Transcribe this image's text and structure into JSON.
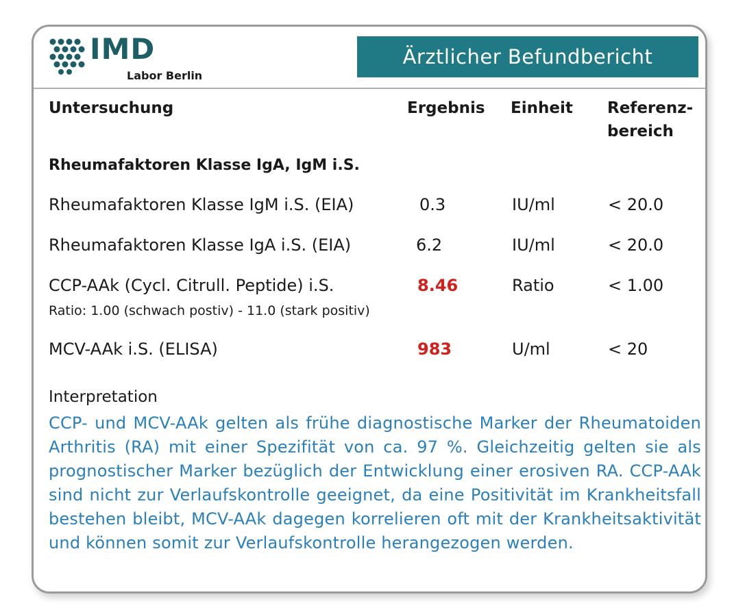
{
  "logo": {
    "name": "IMD",
    "sub": "Labor Berlin",
    "icon": "dot-matrix-logo-icon",
    "color": "#1d5e66"
  },
  "header": {
    "title": "Ärztlicher Befundbericht",
    "title_bg": "#1f7a85"
  },
  "columns": {
    "test": "Untersuchung",
    "result": "Ergebnis",
    "unit": "Einheit",
    "reference_line1": "Referenz-",
    "reference_line2": "bereich"
  },
  "group_title": "Rheumafaktoren Klasse IgA, IgM i.S.",
  "rows": [
    {
      "name": "Rheumafaktoren Klasse IgM i.S. (EIA)",
      "result": "0.3",
      "unit": "IU/ml",
      "reference": "< 20.0",
      "flagged": false
    },
    {
      "name": "Rheumafaktoren Klasse IgA i.S. (EIA)",
      "result": "6.2",
      "unit": "IU/ml",
      "reference": "< 20.0",
      "flagged": false
    },
    {
      "name": "CCP-AAk (Cycl. Citrull. Peptide) i.S.",
      "result": "8.46",
      "unit": "Ratio",
      "reference": "< 1.00",
      "flagged": true,
      "note": "Ratio: 1.00 (schwach postiv) - 11.0 (stark positiv)"
    },
    {
      "name": "MCV-AAk i.S. (ELISA)",
      "result": "983",
      "unit": "U/ml",
      "reference": "< 20",
      "flagged": true
    }
  ],
  "interpretation": {
    "label": "Interpretation",
    "text": "CCP- und MCV-AAk gelten als frühe diagnostische Marker der Rheumatoiden Arthritis (RA) mit einer Spezifität von ca. 97 %. Gleichzeitig gelten sie als prognostischer Marker bezüglich der Entwicklung einer erosiven RA. CCP-AAk sind nicht zur Verlaufskontrolle geeignet, da eine Positivität im Krankheitsfall bestehen bleibt, MCV-AAk dagegen korrelieren oft mit der Krankheitsaktivität und können somit zur Verlaufskontrolle herangezogen werden.",
    "color": "#2a7fbd"
  },
  "flag_color": "#d0211c"
}
